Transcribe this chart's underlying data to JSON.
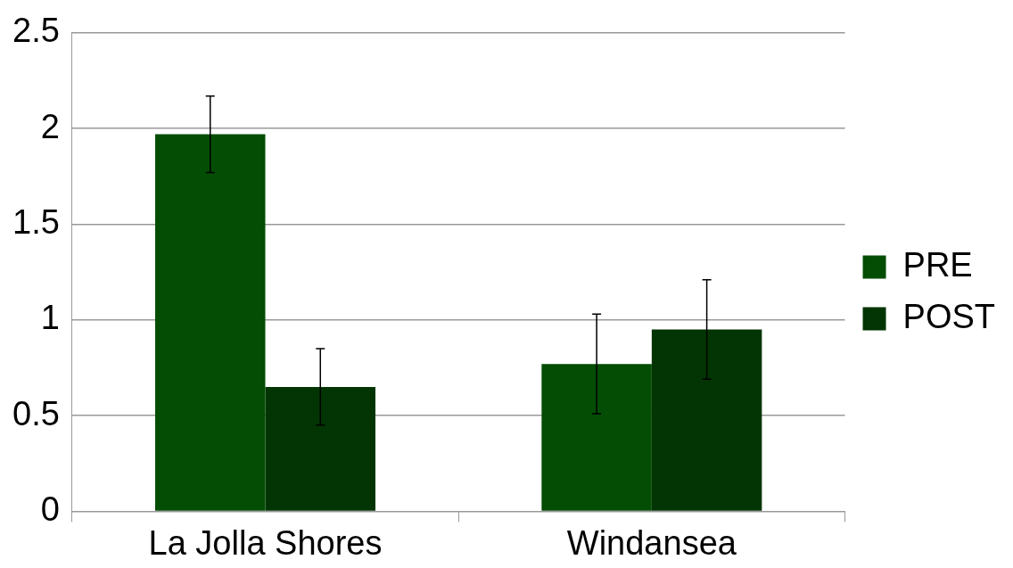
{
  "chart_data": {
    "type": "bar",
    "categories": [
      "La Jolla Shores",
      "Windansea"
    ],
    "series": [
      {
        "name": "PRE",
        "color": "#034d04",
        "values": [
          1.97,
          0.77
        ],
        "errors": [
          0.2,
          0.26
        ]
      },
      {
        "name": "POST",
        "color": "#023503",
        "values": [
          0.65,
          0.95
        ],
        "errors": [
          0.2,
          0.26
        ]
      }
    ],
    "ylim": [
      0,
      2.5
    ],
    "yticks": [
      0,
      0.5,
      1,
      1.5,
      2,
      2.5
    ],
    "grid": "y",
    "legend": "right"
  }
}
